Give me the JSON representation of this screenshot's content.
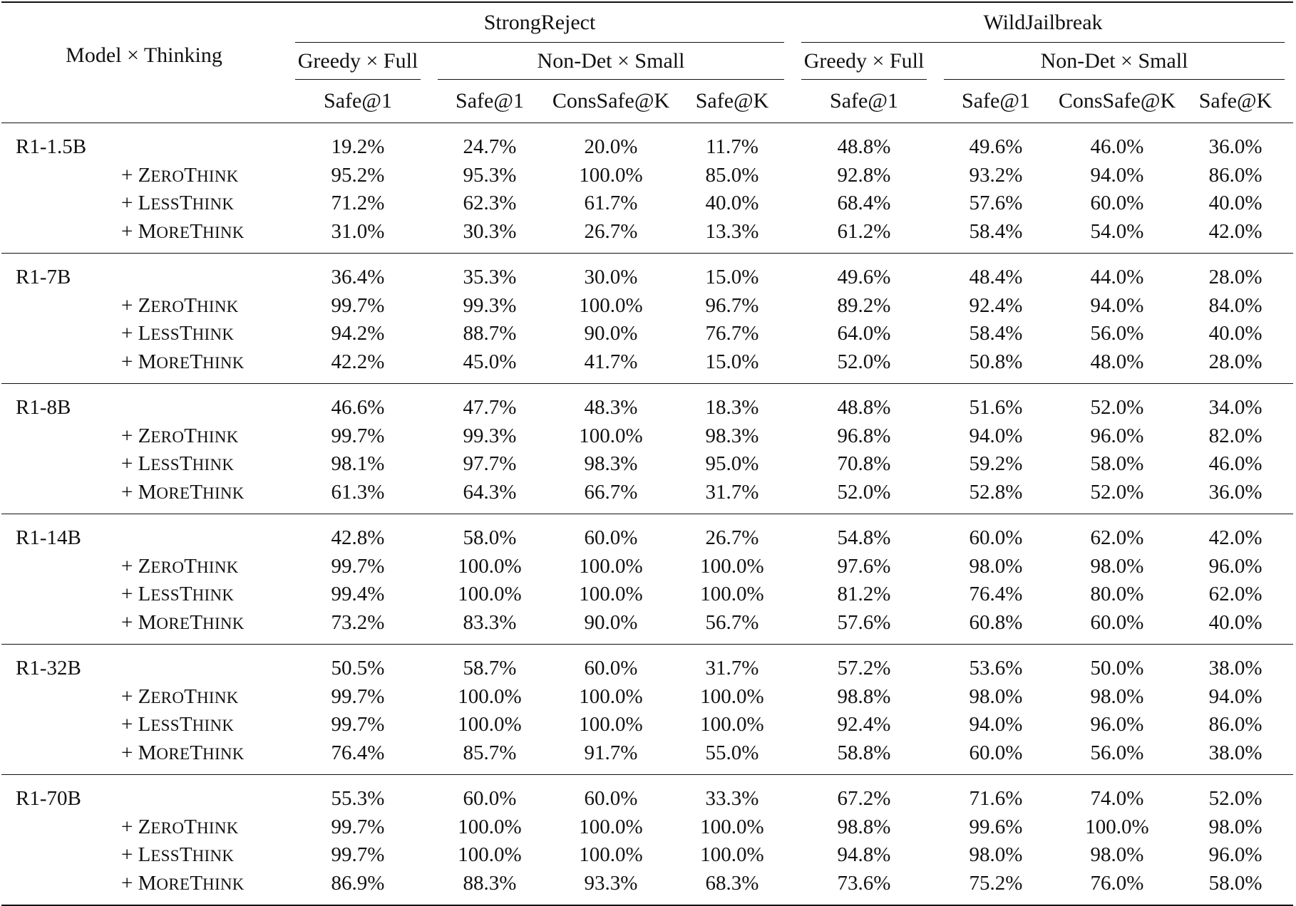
{
  "header": {
    "model_thinking": "Model × Thinking",
    "datasets": [
      "StrongReject",
      "WildJailbreak"
    ],
    "settings": [
      "Greedy × Full",
      "Non-Det × Small"
    ],
    "metrics": [
      "Safe@1",
      "Safe@1",
      "ConsSafe@K",
      "Safe@K",
      "Safe@1",
      "Safe@1",
      "ConsSafe@K",
      "Safe@K"
    ]
  },
  "variants": [
    {
      "prefix": "+ ",
      "cap1": "Z",
      "rest1": "ERO",
      "cap2": "T",
      "rest2": "HINK"
    },
    {
      "prefix": "+ ",
      "cap1": "L",
      "rest1": "ESS",
      "cap2": "T",
      "rest2": "HINK"
    },
    {
      "prefix": "+ ",
      "cap1": "M",
      "rest1": "ORE",
      "cap2": "T",
      "rest2": "HINK"
    }
  ],
  "models": [
    {
      "name": "R1-1.5B",
      "rows": [
        [
          "19.2%",
          "24.7%",
          "20.0%",
          "11.7%",
          "48.8%",
          "49.6%",
          "46.0%",
          "36.0%"
        ],
        [
          "95.2%",
          "95.3%",
          "100.0%",
          "85.0%",
          "92.8%",
          "93.2%",
          "94.0%",
          "86.0%"
        ],
        [
          "71.2%",
          "62.3%",
          "61.7%",
          "40.0%",
          "68.4%",
          "57.6%",
          "60.0%",
          "40.0%"
        ],
        [
          "31.0%",
          "30.3%",
          "26.7%",
          "13.3%",
          "61.2%",
          "58.4%",
          "54.0%",
          "42.0%"
        ]
      ]
    },
    {
      "name": "R1-7B",
      "rows": [
        [
          "36.4%",
          "35.3%",
          "30.0%",
          "15.0%",
          "49.6%",
          "48.4%",
          "44.0%",
          "28.0%"
        ],
        [
          "99.7%",
          "99.3%",
          "100.0%",
          "96.7%",
          "89.2%",
          "92.4%",
          "94.0%",
          "84.0%"
        ],
        [
          "94.2%",
          "88.7%",
          "90.0%",
          "76.7%",
          "64.0%",
          "58.4%",
          "56.0%",
          "40.0%"
        ],
        [
          "42.2%",
          "45.0%",
          "41.7%",
          "15.0%",
          "52.0%",
          "50.8%",
          "48.0%",
          "28.0%"
        ]
      ]
    },
    {
      "name": "R1-8B",
      "rows": [
        [
          "46.6%",
          "47.7%",
          "48.3%",
          "18.3%",
          "48.8%",
          "51.6%",
          "52.0%",
          "34.0%"
        ],
        [
          "99.7%",
          "99.3%",
          "100.0%",
          "98.3%",
          "96.8%",
          "94.0%",
          "96.0%",
          "82.0%"
        ],
        [
          "98.1%",
          "97.7%",
          "98.3%",
          "95.0%",
          "70.8%",
          "59.2%",
          "58.0%",
          "46.0%"
        ],
        [
          "61.3%",
          "64.3%",
          "66.7%",
          "31.7%",
          "52.0%",
          "52.8%",
          "52.0%",
          "36.0%"
        ]
      ]
    },
    {
      "name": "R1-14B",
      "rows": [
        [
          "42.8%",
          "58.0%",
          "60.0%",
          "26.7%",
          "54.8%",
          "60.0%",
          "62.0%",
          "42.0%"
        ],
        [
          "99.7%",
          "100.0%",
          "100.0%",
          "100.0%",
          "97.6%",
          "98.0%",
          "98.0%",
          "96.0%"
        ],
        [
          "99.4%",
          "100.0%",
          "100.0%",
          "100.0%",
          "81.2%",
          "76.4%",
          "80.0%",
          "62.0%"
        ],
        [
          "73.2%",
          "83.3%",
          "90.0%",
          "56.7%",
          "57.6%",
          "60.8%",
          "60.0%",
          "40.0%"
        ]
      ]
    },
    {
      "name": "R1-32B",
      "rows": [
        [
          "50.5%",
          "58.7%",
          "60.0%",
          "31.7%",
          "57.2%",
          "53.6%",
          "50.0%",
          "38.0%"
        ],
        [
          "99.7%",
          "100.0%",
          "100.0%",
          "100.0%",
          "98.8%",
          "98.0%",
          "98.0%",
          "94.0%"
        ],
        [
          "99.7%",
          "100.0%",
          "100.0%",
          "100.0%",
          "92.4%",
          "94.0%",
          "96.0%",
          "86.0%"
        ],
        [
          "76.4%",
          "85.7%",
          "91.7%",
          "55.0%",
          "58.8%",
          "60.0%",
          "56.0%",
          "38.0%"
        ]
      ]
    },
    {
      "name": "R1-70B",
      "rows": [
        [
          "55.3%",
          "60.0%",
          "60.0%",
          "33.3%",
          "67.2%",
          "71.6%",
          "74.0%",
          "52.0%"
        ],
        [
          "99.7%",
          "100.0%",
          "100.0%",
          "100.0%",
          "98.8%",
          "99.6%",
          "100.0%",
          "98.0%"
        ],
        [
          "99.7%",
          "100.0%",
          "100.0%",
          "100.0%",
          "94.8%",
          "98.0%",
          "98.0%",
          "96.0%"
        ],
        [
          "86.9%",
          "88.3%",
          "93.3%",
          "68.3%",
          "73.6%",
          "75.2%",
          "76.0%",
          "58.0%"
        ]
      ]
    }
  ]
}
